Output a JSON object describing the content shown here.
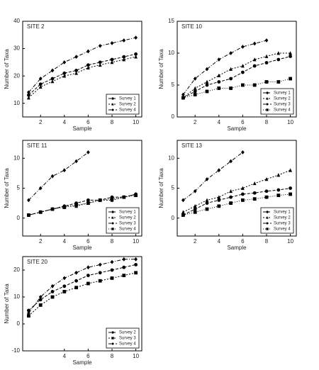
{
  "chart_data": [
    {
      "type": "line",
      "title": "SITE 2",
      "xlabel": "Sample",
      "ylabel": "Number of Taxa",
      "x": [
        1,
        2,
        3,
        4,
        5,
        6,
        7,
        8,
        9,
        10
      ],
      "xlim": [
        0.5,
        10.5
      ],
      "xticks": [
        2,
        4,
        6,
        8,
        10
      ],
      "ylim": [
        5,
        40
      ],
      "yticks": [
        10,
        20,
        30,
        40
      ],
      "legend": "lower-right",
      "series": [
        {
          "name": "Survey 1",
          "color": "#000000",
          "marker": "circle",
          "values": [
            13,
            17,
            19,
            21,
            22,
            24,
            25,
            26,
            27,
            28
          ]
        },
        {
          "name": "Survey 2",
          "color": "#000000",
          "marker": "triangle",
          "values": [
            12,
            16,
            18,
            20,
            21,
            23,
            24,
            25,
            26,
            27
          ]
        },
        {
          "name": "Survey 4",
          "color": "#000000",
          "marker": "diamond",
          "values": [
            14,
            19,
            22,
            25,
            27,
            29,
            31,
            32,
            33,
            34
          ]
        }
      ]
    },
    {
      "type": "line",
      "title": "SITE 10",
      "xlabel": "Sample",
      "ylabel": "Number of Taxa",
      "x": [
        1,
        2,
        3,
        4,
        5,
        6,
        7,
        8,
        9,
        10
      ],
      "xlim": [
        0.5,
        10.5
      ],
      "xticks": [
        2,
        4,
        6,
        8,
        10
      ],
      "ylim": [
        0,
        15
      ],
      "yticks": [
        0,
        5,
        10,
        15
      ],
      "legend": "lower-right",
      "series": [
        {
          "name": "Survey 1",
          "color": "#000000",
          "marker": "circle",
          "values": [
            3,
            4,
            5,
            5.5,
            6,
            7,
            8,
            8.5,
            9,
            9.5
          ]
        },
        {
          "name": "Survey 2",
          "color": "#000000",
          "marker": "triangle",
          "values": [
            3,
            4.5,
            5.5,
            6.5,
            7.5,
            8,
            9,
            9.5,
            10,
            10
          ]
        },
        {
          "name": "Survey 3",
          "color": "#000000",
          "marker": "diamond",
          "values": [
            3.5,
            6,
            7.5,
            9,
            10,
            11,
            11.5,
            12,
            null,
            null
          ]
        },
        {
          "name": "Survey 4",
          "color": "#000000",
          "marker": "square",
          "values": [
            3,
            3.5,
            4,
            4.5,
            4.5,
            5,
            5,
            5.5,
            5.5,
            6
          ]
        }
      ]
    },
    {
      "type": "line",
      "title": "SITE 11",
      "xlabel": "Sample",
      "ylabel": "Number of Taxa",
      "x": [
        1,
        2,
        3,
        4,
        5,
        6,
        7,
        8,
        9,
        10
      ],
      "xlim": [
        0.5,
        10.5
      ],
      "xticks": [
        2,
        4,
        6,
        8,
        10
      ],
      "ylim": [
        -3,
        13
      ],
      "yticks": [
        0,
        5,
        10
      ],
      "legend": "lower-right",
      "series": [
        {
          "name": "Survey 1",
          "color": "#000000",
          "marker": "circle",
          "values": [
            0.5,
            1,
            1.5,
            2,
            2.5,
            3,
            3,
            3.5,
            3.5,
            4
          ]
        },
        {
          "name": "Survey 2",
          "color": "#000000",
          "marker": "triangle",
          "values": [
            0.5,
            1,
            1.5,
            2,
            2,
            2.5,
            3,
            3,
            3.5,
            4
          ]
        },
        {
          "name": "Survey 3",
          "color": "#000000",
          "marker": "diamond",
          "values": [
            3,
            5,
            7,
            8,
            9.5,
            11,
            null,
            null,
            null,
            null
          ]
        },
        {
          "name": "Survey 4",
          "color": "#000000",
          "marker": "square",
          "values": [
            0.5,
            1,
            1.5,
            1.8,
            2.2,
            2.5,
            3,
            3.2,
            3.5,
            3.8
          ]
        }
      ]
    },
    {
      "type": "line",
      "title": "SITE 13",
      "xlabel": "Sample",
      "ylabel": "Number of Taxa",
      "x": [
        1,
        2,
        3,
        4,
        5,
        6,
        7,
        8,
        9,
        10
      ],
      "xlim": [
        0.5,
        10.5
      ],
      "xticks": [
        2,
        4,
        6,
        8,
        10
      ],
      "ylim": [
        -3,
        13
      ],
      "yticks": [
        0,
        5,
        10
      ],
      "legend": "lower-right",
      "series": [
        {
          "name": "Survey 1",
          "color": "#000000",
          "marker": "circle",
          "values": [
            0.5,
            1.5,
            2.5,
            3,
            3.5,
            4,
            4.2,
            4.5,
            4.7,
            5
          ]
        },
        {
          "name": "Survey 2",
          "color": "#000000",
          "marker": "triangle",
          "values": [
            1,
            2,
            3,
            3.5,
            4.5,
            5,
            5.8,
            6.5,
            7.2,
            8
          ]
        },
        {
          "name": "Survey 3",
          "color": "#000000",
          "marker": "diamond",
          "values": [
            3,
            4.5,
            6.5,
            8,
            9.5,
            11,
            null,
            null,
            null,
            null
          ]
        },
        {
          "name": "Survey 4",
          "color": "#000000",
          "marker": "square",
          "values": [
            0.5,
            1,
            1.5,
            2,
            2.5,
            3,
            3.2,
            3.5,
            3.8,
            4
          ]
        }
      ]
    },
    {
      "type": "line",
      "title": "SITE 20",
      "xlabel": "Sample",
      "ylabel": "Number of Taxa",
      "x": [
        1,
        2,
        3,
        4,
        5,
        6,
        7,
        8,
        9,
        10
      ],
      "xlim": [
        0.5,
        10.5
      ],
      "xticks": [
        4,
        6,
        8,
        10
      ],
      "ylim": [
        -10,
        25
      ],
      "yticks": [
        -10,
        0,
        10,
        20
      ],
      "legend": "lower-right",
      "series": [
        {
          "name": "Survey 2",
          "color": "#000000",
          "marker": "circle",
          "values": [
            5,
            9,
            12,
            14,
            16,
            18,
            19,
            20,
            21,
            22
          ]
        },
        {
          "name": "Survey 3",
          "color": "#000000",
          "marker": "square",
          "values": [
            3,
            7,
            10,
            12,
            13.5,
            15,
            16,
            17,
            18,
            19
          ]
        },
        {
          "name": "Survey 4",
          "color": "#000000",
          "marker": "diamond",
          "values": [
            4,
            10,
            14,
            17,
            19,
            21,
            22,
            23,
            24,
            24
          ]
        }
      ]
    }
  ]
}
